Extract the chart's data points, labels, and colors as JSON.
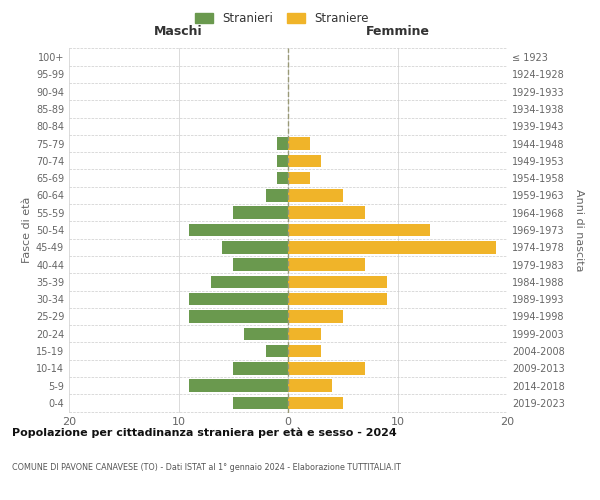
{
  "age_groups": [
    "0-4",
    "5-9",
    "10-14",
    "15-19",
    "20-24",
    "25-29",
    "30-34",
    "35-39",
    "40-44",
    "45-49",
    "50-54",
    "55-59",
    "60-64",
    "65-69",
    "70-74",
    "75-79",
    "80-84",
    "85-89",
    "90-94",
    "95-99",
    "100+"
  ],
  "birth_years": [
    "2019-2023",
    "2014-2018",
    "2009-2013",
    "2004-2008",
    "1999-2003",
    "1994-1998",
    "1989-1993",
    "1984-1988",
    "1979-1983",
    "1974-1978",
    "1969-1973",
    "1964-1968",
    "1959-1963",
    "1954-1958",
    "1949-1953",
    "1944-1948",
    "1939-1943",
    "1934-1938",
    "1929-1933",
    "1924-1928",
    "≤ 1923"
  ],
  "males": [
    5,
    9,
    5,
    2,
    4,
    9,
    9,
    7,
    5,
    6,
    9,
    5,
    2,
    1,
    1,
    1,
    0,
    0,
    0,
    0,
    0
  ],
  "females": [
    5,
    4,
    7,
    3,
    3,
    5,
    9,
    9,
    7,
    19,
    13,
    7,
    5,
    2,
    3,
    2,
    0,
    0,
    0,
    0,
    0
  ],
  "male_color": "#6a994e",
  "female_color": "#f0b429",
  "male_legend": "Stranieri",
  "female_legend": "Straniere",
  "title1": "Popolazione per cittadinanza straniera per età e sesso - 2024",
  "title2": "COMUNE DI PAVONE CANAVESE (TO) - Dati ISTAT al 1° gennaio 2024 - Elaborazione TUTTITALIA.IT",
  "xlabel_left": "Maschi",
  "xlabel_right": "Femmine",
  "ylabel_left": "Fasce di età",
  "ylabel_right": "Anni di nascita",
  "xlim": 20,
  "background_color": "#ffffff",
  "grid_color": "#cccccc",
  "bar_height": 0.72
}
